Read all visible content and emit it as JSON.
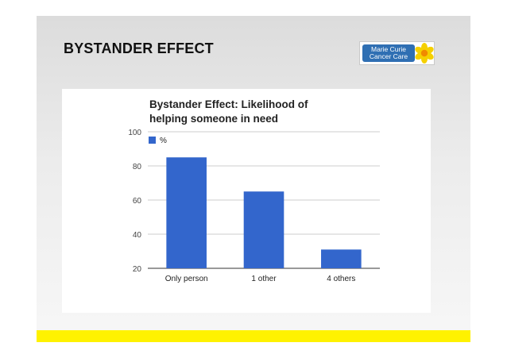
{
  "slide": {
    "title": "BYSTANDER EFFECT",
    "logo_text_line1": "Marie Curie",
    "logo_text_line2": "Cancer Care"
  },
  "colors": {
    "bar": "#3366cc",
    "footer": "#fff200",
    "logo_blue": "#2f6fb3",
    "logo_flower": "#f5d000"
  },
  "chart_data": {
    "type": "bar",
    "title_line1": "Bystander Effect: Likelihood of",
    "title_line2": "helping someone in need",
    "categories": [
      "Only person",
      "1 other",
      "4 others"
    ],
    "series": [
      {
        "name": "%",
        "values": [
          85,
          65,
          31
        ]
      }
    ],
    "ylim": [
      20,
      100
    ],
    "yticks": [
      20,
      40,
      60,
      80,
      100
    ],
    "xlabel": "",
    "ylabel": "",
    "grid": true,
    "legend": "top-left"
  }
}
